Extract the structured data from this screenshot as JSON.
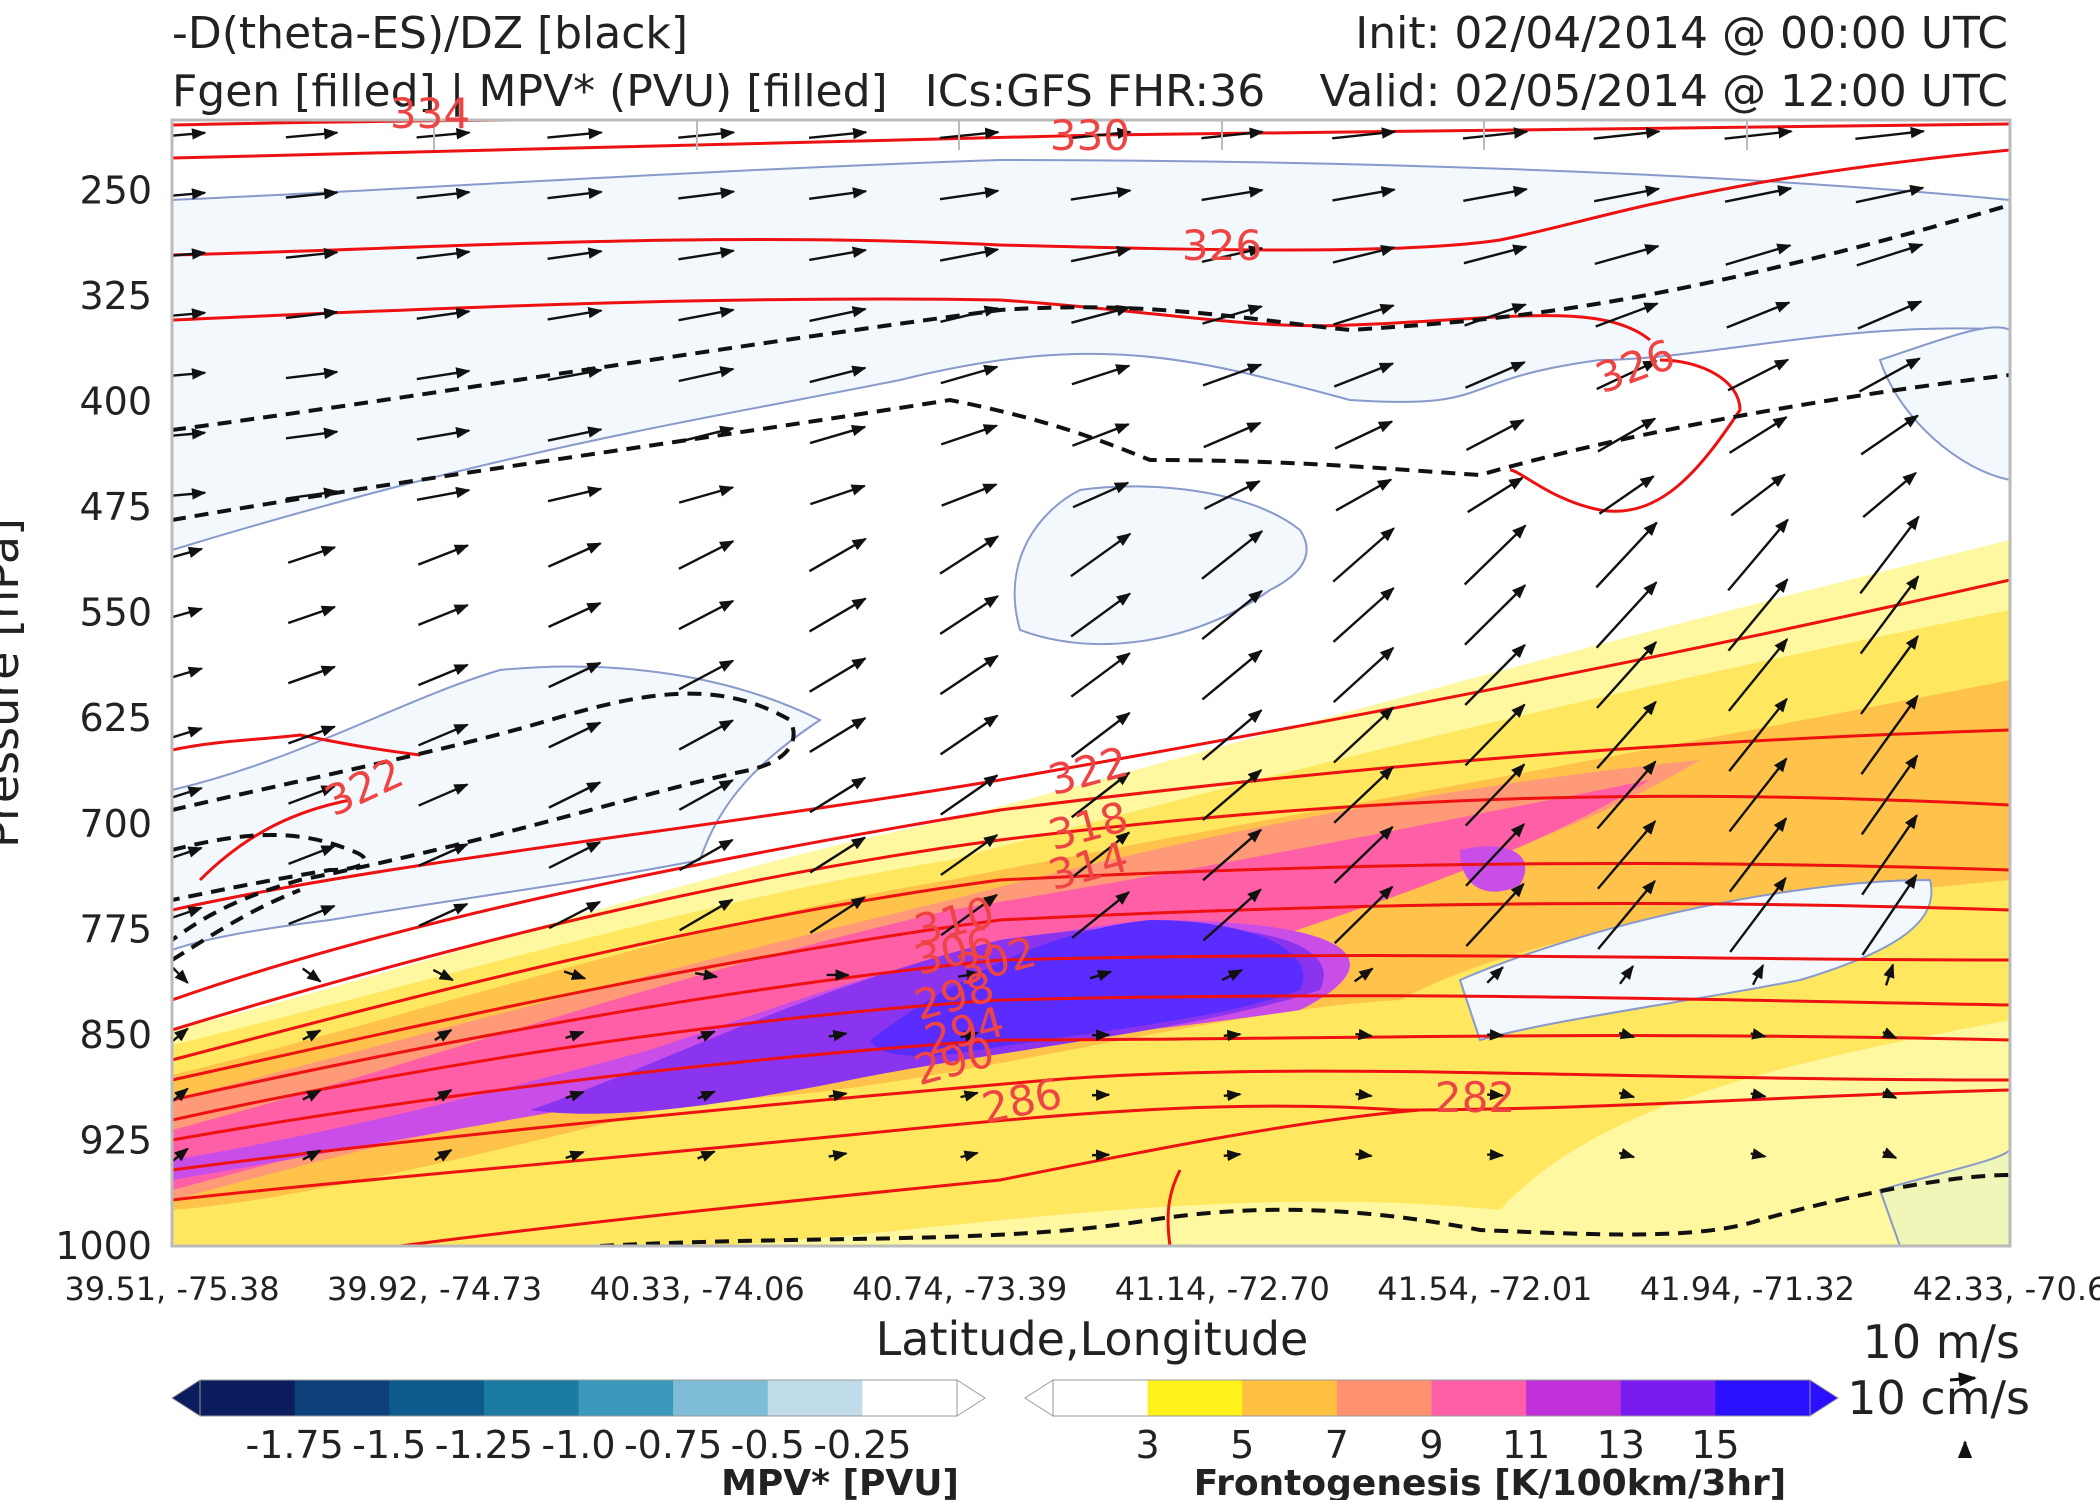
{
  "header": {
    "left_line1": "-D(theta-ES)/DZ [black]",
    "left_line2": "Fgen [filled] | MPV* (PVU) [filled]",
    "center": "ICs:GFS FHR:36",
    "right_line1": "Init: 02/04/2014 @ 00:00 UTC",
    "right_line2": "Valid: 02/05/2014 @ 12:00 UTC"
  },
  "colors": {
    "theta_contour": "#ee1111",
    "stability_contour": "#111111",
    "mpv_outline": "#8899cc",
    "mpv_fill": "#f2f8fc"
  },
  "chart_data": {
    "type": "cross-section",
    "xlabel": "Latitude,Longitude",
    "ylabel": "Pressure [hPa]",
    "yticks": [
      "250",
      "325",
      "400",
      "475",
      "550",
      "625",
      "700",
      "775",
      "850",
      "925",
      "1000"
    ],
    "xticks": [
      "39.51, -75.38",
      "39.92, -74.73",
      "40.33, -74.06",
      "40.74, -73.39",
      "41.14, -72.70",
      "41.54, -72.01",
      "41.94, -71.32",
      "42.33, -70.6"
    ],
    "ylim": [
      200,
      1000
    ],
    "theta_labels": [
      "334",
      "330",
      "326",
      "326",
      "322",
      "322",
      "318",
      "314",
      "310",
      "306",
      "302",
      "298",
      "294",
      "290",
      "286",
      "282"
    ],
    "wind_legend": {
      "horizontal": "10 m/s",
      "vertical": "10 cm/s"
    },
    "mpv_colorbar": {
      "label": "MPV* [PVU]",
      "ticks": [
        "-1.75",
        "-1.5",
        "-1.25",
        "-1.0",
        "-0.75",
        "-0.5",
        "-0.25"
      ],
      "colors": [
        "#0b1d5c",
        "#0d3f7a",
        "#0f5a8c",
        "#1b7aa0",
        "#3a98bb",
        "#7fbdd6",
        "#bfdce8",
        "#ffffff"
      ]
    },
    "fgen_colorbar": {
      "label": "Frontogenesis [K/100km/3hr]",
      "ticks": [
        "3",
        "5",
        "7",
        "9",
        "11",
        "13",
        "15"
      ],
      "colors": [
        "#ffffff",
        "#fff21a",
        "#ffc040",
        "#ff9070",
        "#ff5fa6",
        "#c030d8",
        "#7a1cf0",
        "#2a10ff"
      ]
    }
  }
}
